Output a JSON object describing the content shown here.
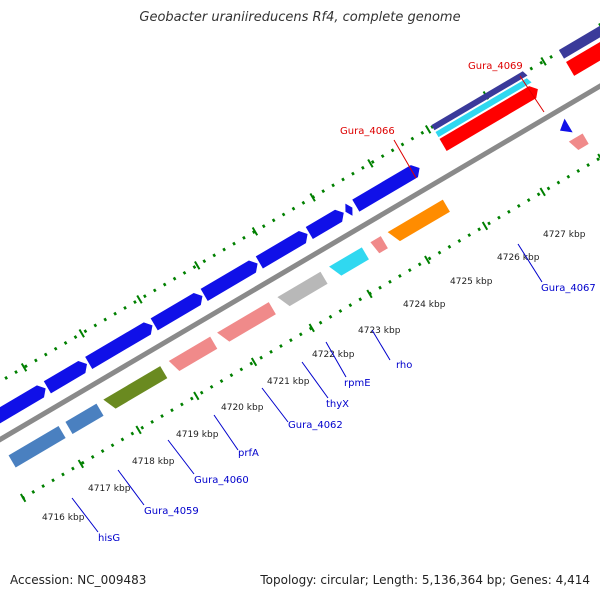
{
  "title": "Geobacter uraniireducens Rf4, complete genome",
  "footer": {
    "accession": "Accession: NC_009483",
    "summary": "Topology: circular; Length: 5,136,364 bp; Genes: 4,414"
  },
  "ticks": [
    "4716 kbp",
    "4717 kbp",
    "4718 kbp",
    "4719 kbp",
    "4720 kbp",
    "4721 kbp",
    "4722 kbp",
    "4723 kbp",
    "4724 kbp",
    "4725 kbp",
    "4726 kbp",
    "4727 kbp"
  ],
  "labels": [
    {
      "id": "hisG",
      "text": "hisG",
      "color": "#0000cc"
    },
    {
      "id": "gura4059",
      "text": "Gura_4059",
      "color": "#0000cc"
    },
    {
      "id": "gura4060",
      "text": "Gura_4060",
      "color": "#0000cc"
    },
    {
      "id": "prfa",
      "text": "prfA",
      "color": "#0000cc"
    },
    {
      "id": "gura4062",
      "text": "Gura_4062",
      "color": "#0000cc"
    },
    {
      "id": "thyx",
      "text": "thyX",
      "color": "#0000cc"
    },
    {
      "id": "rpme",
      "text": "rpmE",
      "color": "#0000cc"
    },
    {
      "id": "rho",
      "text": "rho",
      "color": "#0000cc"
    },
    {
      "id": "gura4066",
      "text": "Gura_4066",
      "color": "#dd0000"
    },
    {
      "id": "gura4067",
      "text": "Gura_4067",
      "color": "#0000cc"
    },
    {
      "id": "gura4069",
      "text": "Gura_4069",
      "color": "#dd0000"
    }
  ],
  "colors": {
    "cds": "#1010e8",
    "cds_dark": "#3a3a9a",
    "rna": "#ff0000",
    "rna_pink": "#f08a8a",
    "cyan": "#30d8f0",
    "steel": "#4a80c0",
    "olive": "#6a8a20",
    "gray": "#b8b8b8",
    "orange": "#ff8c00",
    "tick": "#008000",
    "backbone": "#888888"
  }
}
